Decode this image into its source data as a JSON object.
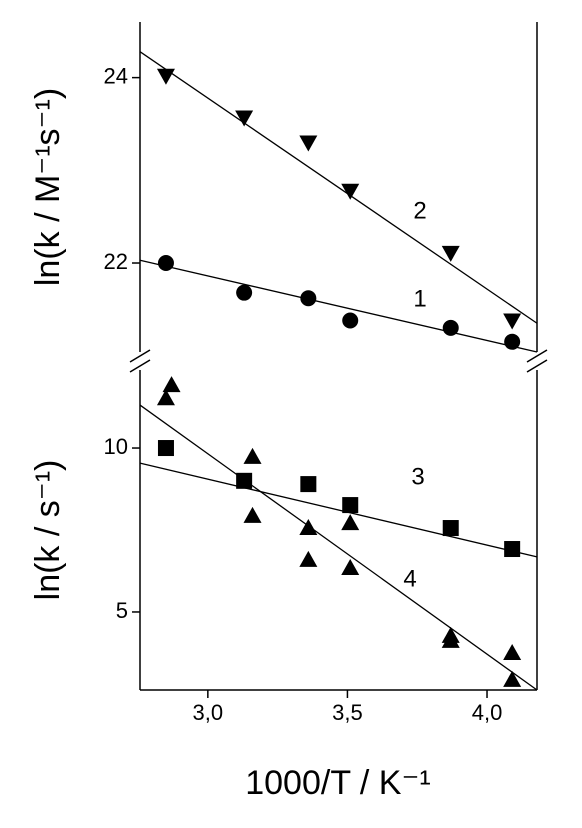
{
  "chart_data": [
    {
      "type": "scatter",
      "ylabel": "ln(k / M⁻¹s⁻¹)",
      "xlim": [
        2.757,
        4.179
      ],
      "ylim": [
        21.04,
        24.6
      ],
      "yticks": [
        22,
        24
      ],
      "series": [
        {
          "name": "1",
          "marker": "circle",
          "color": "#000000",
          "x": [
            2.85,
            3.13,
            3.36,
            3.51,
            3.87,
            4.09
          ],
          "values": [
            22.0,
            21.68,
            21.62,
            21.38,
            21.3,
            21.15
          ],
          "fit": [
            22.03,
            21.04
          ]
        },
        {
          "name": "2",
          "marker": "triangle-down",
          "color": "#000000",
          "x": [
            2.85,
            3.13,
            3.36,
            3.51,
            3.87,
            4.09
          ],
          "values": [
            24.02,
            23.57,
            23.3,
            22.78,
            22.11,
            21.38
          ],
          "fit": [
            24.28,
            21.35
          ]
        }
      ]
    },
    {
      "type": "scatter",
      "ylabel": "ln(k / s⁻¹)",
      "xlabel": "1000/T / K⁻¹",
      "xlim": [
        2.757,
        4.179
      ],
      "ylim": [
        2.62,
        12.38
      ],
      "yticks": [
        5,
        10
      ],
      "xticks": [
        {
          "value": 3.0,
          "label": "3,0"
        },
        {
          "value": 3.5,
          "label": "3,5"
        },
        {
          "value": 4.0,
          "label": "4,0"
        }
      ],
      "series": [
        {
          "name": "3",
          "marker": "square",
          "color": "#000000",
          "x": [
            2.85,
            3.13,
            3.36,
            3.51,
            3.87,
            4.09
          ],
          "values": [
            10.0,
            9.0,
            8.9,
            8.26,
            7.56,
            6.92
          ],
          "fit": [
            9.54,
            6.68
          ]
        },
        {
          "name": "4",
          "marker": "triangle-up",
          "color": "#000000",
          "x": [
            2.85,
            2.87,
            3.16,
            3.16,
            3.36,
            3.36,
            3.51,
            3.51,
            3.87,
            3.87,
            4.09,
            4.09
          ],
          "values": [
            11.52,
            11.92,
            9.73,
            7.93,
            7.56,
            6.59,
            7.71,
            6.34,
            4.27,
            4.12,
            3.75,
            2.93
          ],
          "fit": [
            11.31,
            2.62
          ]
        }
      ]
    }
  ]
}
